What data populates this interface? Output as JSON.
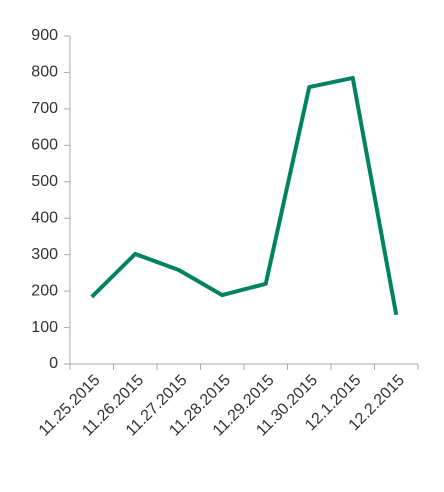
{
  "chart_data": {
    "type": "line",
    "categories": [
      "11.25.2015",
      "11.26.2015",
      "11.27.2015",
      "11.28.2015",
      "11.29.2015",
      "11.30.2015",
      "12.1.2015",
      "12.2.2015"
    ],
    "series": [
      {
        "name": null,
        "color": "#00845f",
        "values": [
          184,
          302,
          258,
          189,
          220,
          760,
          785,
          135
        ]
      }
    ],
    "ylim": [
      0,
      900
    ],
    "yticks": [
      0,
      100,
      200,
      300,
      400,
      500,
      600,
      700,
      800,
      900
    ],
    "grid": false
  }
}
